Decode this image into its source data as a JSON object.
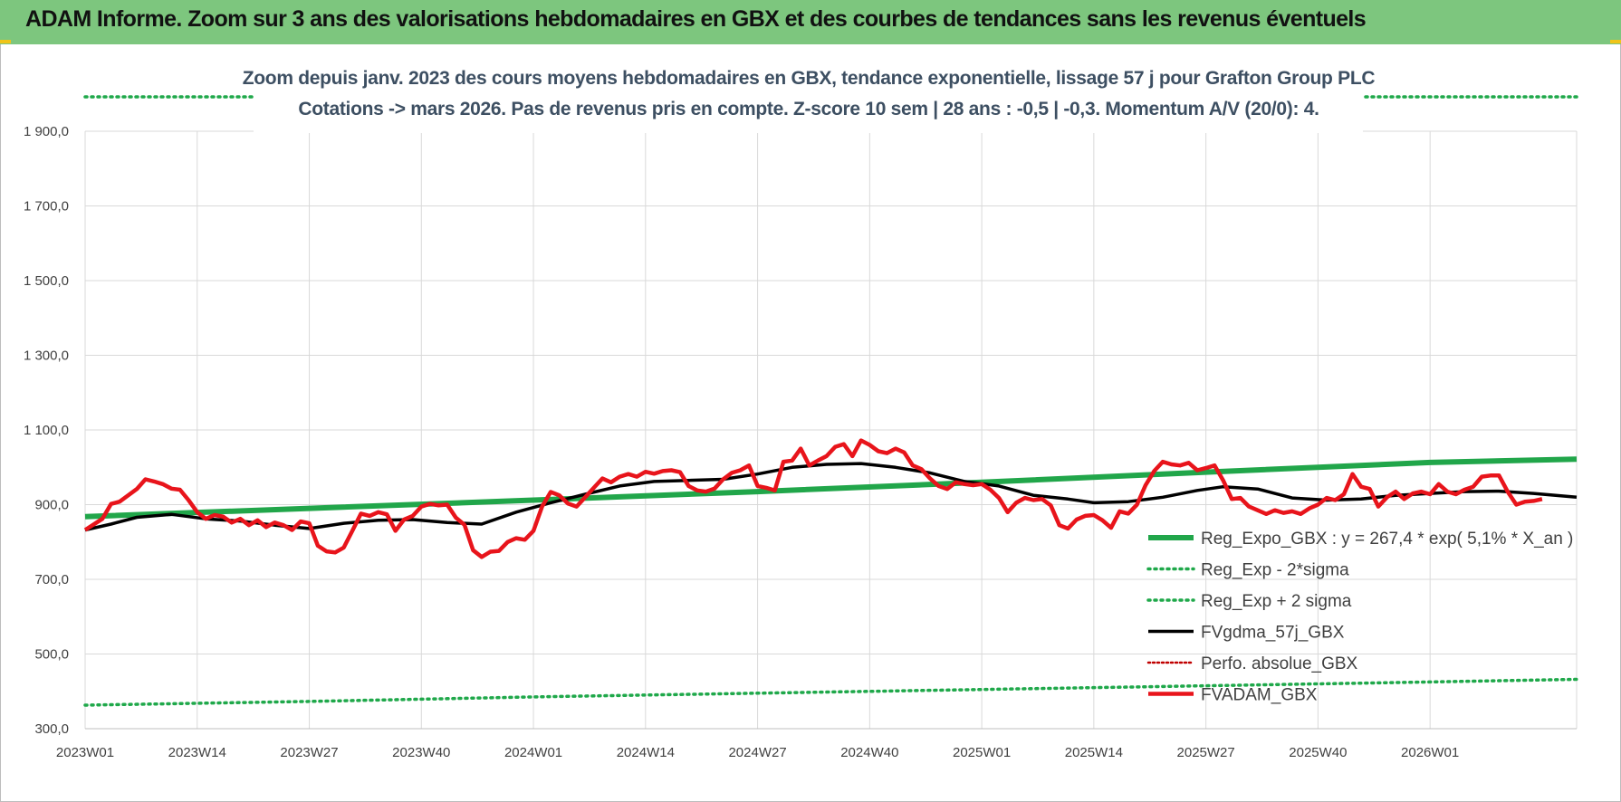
{
  "header": {
    "title": "ADAM Informe. Zoom sur 3 ans des valorisations hebdomadaires en GBX et des courbes de tendances sans les revenus éventuels"
  },
  "colors": {
    "header_bg": "#7dc67e",
    "reg_expo": "#21a64a",
    "sigma_lines": "#1fa84a",
    "gdma": "#000000",
    "perfo": "#c00000",
    "fvadam": "#e8141b"
  },
  "chart_data": {
    "type": "line",
    "title_line1": "Zoom depuis janv. 2023 des cours moyens hebdomadaires en GBX, tendance exponentielle, lissage 57 j pour Grafton Group PLC",
    "title_line2": "Cotations -> mars 2026. Pas de revenus pris en compte. Z-score 10 sem | 28 ans : -0,5 | -0,3. Momentum A/V (20/0): 4.",
    "ylim": [
      300,
      2000
    ],
    "y_ticks": [
      "1 900,0",
      "1 700,0",
      "1 500,0",
      "1 300,0",
      "1 100,0",
      "900,0",
      "700,0",
      "500,0",
      "300,0"
    ],
    "y_tick_values": [
      1900,
      1700,
      1500,
      1300,
      1100,
      900,
      700,
      500,
      300
    ],
    "x_ticks": [
      "2023W01",
      "2023W14",
      "2023W27",
      "2023W40",
      "2024W01",
      "2024W14",
      "2024W27",
      "2024W40",
      "2025W01",
      "2025W14",
      "2025W27",
      "2025W40",
      "2026W01"
    ],
    "x_tick_weeks": [
      0,
      13,
      26,
      39,
      52,
      65,
      78,
      91,
      104,
      117,
      130,
      143,
      156
    ],
    "x_range_weeks": [
      0,
      173
    ],
    "grid": true,
    "legend_position": "bottom-right",
    "legend": [
      {
        "key": "reg_expo",
        "label": "Reg_Expo_GBX : y = 267,4 * exp( 5,1% *  X_an )",
        "style": "solid-thick"
      },
      {
        "key": "minus2",
        "label": "Reg_Exp - 2*sigma",
        "style": "dotted"
      },
      {
        "key": "plus2",
        "label": "Reg_Exp + 2 sigma",
        "style": "dotted"
      },
      {
        "key": "gdma",
        "label": "FVgdma_57j_GBX",
        "style": "solid"
      },
      {
        "key": "perfo",
        "label": "Perfo. absolue_GBX",
        "style": "dotted"
      },
      {
        "key": "fvadam",
        "label": "FVADAM_GBX",
        "style": "solid-thick"
      }
    ],
    "series": [
      {
        "key": "reg_expo",
        "name": "Reg_Expo_GBX : y = 267,4 * exp( 5,1% *  X_an )",
        "points": [
          [
            0,
            868
          ],
          [
            26,
            890
          ],
          [
            52,
            912
          ],
          [
            78,
            935
          ],
          [
            104,
            960
          ],
          [
            130,
            987
          ],
          [
            156,
            1013
          ],
          [
            173,
            1022
          ]
        ]
      },
      {
        "key": "minus2",
        "name": "Reg_Exp - 2*sigma",
        "points": [
          [
            0,
            363
          ],
          [
            26,
            373
          ],
          [
            52,
            385
          ],
          [
            78,
            395
          ],
          [
            104,
            405
          ],
          [
            130,
            415
          ],
          [
            156,
            425
          ],
          [
            173,
            432
          ]
        ]
      },
      {
        "key": "plus2",
        "name": "Reg_Exp + 2 sigma",
        "points": [
          [
            0,
            1995
          ],
          [
            173,
            1995
          ]
        ]
      },
      {
        "key": "gdma",
        "name": "FVgdma_57j_GBX",
        "points": [
          [
            0,
            832
          ],
          [
            3,
            848
          ],
          [
            6,
            866
          ],
          [
            10,
            874
          ],
          [
            14,
            862
          ],
          [
            18,
            856
          ],
          [
            22,
            845
          ],
          [
            26,
            836
          ],
          [
            30,
            850
          ],
          [
            34,
            858
          ],
          [
            38,
            860
          ],
          [
            42,
            852
          ],
          [
            46,
            848
          ],
          [
            50,
            880
          ],
          [
            54,
            905
          ],
          [
            58,
            928
          ],
          [
            62,
            950
          ],
          [
            66,
            962
          ],
          [
            70,
            965
          ],
          [
            74,
            968
          ],
          [
            78,
            982
          ],
          [
            82,
            1000
          ],
          [
            86,
            1008
          ],
          [
            90,
            1010
          ],
          [
            94,
            1000
          ],
          [
            98,
            985
          ],
          [
            102,
            962
          ],
          [
            106,
            950
          ],
          [
            110,
            925
          ],
          [
            114,
            915
          ],
          [
            117,
            905
          ],
          [
            121,
            908
          ],
          [
            125,
            920
          ],
          [
            129,
            938
          ],
          [
            132,
            948
          ],
          [
            136,
            942
          ],
          [
            140,
            918
          ],
          [
            144,
            912
          ],
          [
            148,
            915
          ],
          [
            152,
            925
          ],
          [
            156,
            930
          ],
          [
            160,
            935
          ],
          [
            164,
            936
          ],
          [
            168,
            930
          ],
          [
            173,
            920
          ]
        ]
      },
      {
        "key": "fvadam",
        "name": "FVADAM_GBX",
        "points": [
          [
            0,
            832
          ],
          [
            2,
            862
          ],
          [
            3,
            902
          ],
          [
            4,
            908
          ],
          [
            6,
            942
          ],
          [
            7,
            968
          ],
          [
            8,
            962
          ],
          [
            9,
            955
          ],
          [
            10,
            943
          ],
          [
            11,
            940
          ],
          [
            12,
            912
          ],
          [
            13,
            880
          ],
          [
            14,
            862
          ],
          [
            15,
            872
          ],
          [
            16,
            868
          ],
          [
            17,
            852
          ],
          [
            18,
            862
          ],
          [
            19,
            845
          ],
          [
            20,
            858
          ],
          [
            21,
            840
          ],
          [
            22,
            852
          ],
          [
            23,
            845
          ],
          [
            24,
            832
          ],
          [
            25,
            855
          ],
          [
            26,
            850
          ],
          [
            27,
            790
          ],
          [
            28,
            775
          ],
          [
            29,
            772
          ],
          [
            30,
            785
          ],
          [
            31,
            830
          ],
          [
            32,
            876
          ],
          [
            33,
            870
          ],
          [
            34,
            880
          ],
          [
            35,
            874
          ],
          [
            36,
            830
          ],
          [
            37,
            860
          ],
          [
            38,
            870
          ],
          [
            39,
            895
          ],
          [
            40,
            902
          ],
          [
            41,
            898
          ],
          [
            42,
            900
          ],
          [
            43,
            865
          ],
          [
            44,
            846
          ],
          [
            45,
            778
          ],
          [
            46,
            760
          ],
          [
            47,
            774
          ],
          [
            48,
            776
          ],
          [
            49,
            800
          ],
          [
            50,
            810
          ],
          [
            51,
            806
          ],
          [
            52,
            830
          ],
          [
            53,
            895
          ],
          [
            54,
            934
          ],
          [
            55,
            925
          ],
          [
            56,
            903
          ],
          [
            57,
            895
          ],
          [
            58,
            920
          ],
          [
            59,
            945
          ],
          [
            60,
            970
          ],
          [
            61,
            960
          ],
          [
            62,
            975
          ],
          [
            63,
            982
          ],
          [
            64,
            975
          ],
          [
            65,
            988
          ],
          [
            66,
            983
          ],
          [
            67,
            990
          ],
          [
            68,
            992
          ],
          [
            69,
            987
          ],
          [
            70,
            950
          ],
          [
            71,
            938
          ],
          [
            72,
            935
          ],
          [
            73,
            943
          ],
          [
            74,
            968
          ],
          [
            75,
            985
          ],
          [
            76,
            992
          ],
          [
            77,
            1005
          ],
          [
            78,
            950
          ],
          [
            79,
            945
          ],
          [
            80,
            938
          ],
          [
            81,
            1015
          ],
          [
            82,
            1018
          ],
          [
            83,
            1050
          ],
          [
            84,
            1005
          ],
          [
            85,
            1018
          ],
          [
            86,
            1030
          ],
          [
            87,
            1055
          ],
          [
            88,
            1062
          ],
          [
            89,
            1030
          ],
          [
            90,
            1072
          ],
          [
            91,
            1060
          ],
          [
            92,
            1043
          ],
          [
            93,
            1038
          ],
          [
            94,
            1050
          ],
          [
            95,
            1040
          ],
          [
            96,
            1005
          ],
          [
            97,
            995
          ],
          [
            98,
            970
          ],
          [
            99,
            950
          ],
          [
            100,
            942
          ],
          [
            101,
            960
          ],
          [
            102,
            955
          ],
          [
            103,
            952
          ],
          [
            104,
            955
          ],
          [
            105,
            940
          ],
          [
            106,
            918
          ],
          [
            107,
            880
          ],
          [
            108,
            905
          ],
          [
            109,
            918
          ],
          [
            110,
            912
          ],
          [
            111,
            915
          ],
          [
            112,
            898
          ],
          [
            113,
            845
          ],
          [
            114,
            836
          ],
          [
            115,
            860
          ],
          [
            116,
            870
          ],
          [
            117,
            872
          ],
          [
            118,
            858
          ],
          [
            119,
            838
          ],
          [
            120,
            882
          ],
          [
            121,
            876
          ],
          [
            122,
            900
          ],
          [
            123,
            952
          ],
          [
            124,
            990
          ],
          [
            125,
            1015
          ],
          [
            126,
            1008
          ],
          [
            127,
            1005
          ],
          [
            128,
            1012
          ],
          [
            129,
            992
          ],
          [
            130,
            998
          ],
          [
            131,
            1005
          ],
          [
            132,
            965
          ],
          [
            133,
            915
          ],
          [
            134,
            918
          ],
          [
            135,
            895
          ],
          [
            136,
            885
          ],
          [
            137,
            875
          ],
          [
            138,
            885
          ],
          [
            139,
            878
          ],
          [
            140,
            882
          ],
          [
            141,
            875
          ],
          [
            142,
            890
          ],
          [
            143,
            900
          ],
          [
            144,
            918
          ],
          [
            145,
            912
          ],
          [
            146,
            928
          ],
          [
            147,
            982
          ],
          [
            148,
            948
          ],
          [
            149,
            942
          ],
          [
            150,
            895
          ],
          [
            151,
            920
          ],
          [
            152,
            935
          ],
          [
            153,
            915
          ],
          [
            154,
            930
          ],
          [
            155,
            935
          ],
          [
            156,
            928
          ],
          [
            157,
            955
          ],
          [
            158,
            935
          ],
          [
            159,
            928
          ],
          [
            160,
            940
          ],
          [
            161,
            948
          ],
          [
            162,
            975
          ],
          [
            163,
            978
          ],
          [
            164,
            978
          ],
          [
            165,
            935
          ],
          [
            166,
            900
          ],
          [
            167,
            908
          ],
          [
            168,
            910
          ],
          [
            169,
            915
          ]
        ]
      }
    ]
  }
}
